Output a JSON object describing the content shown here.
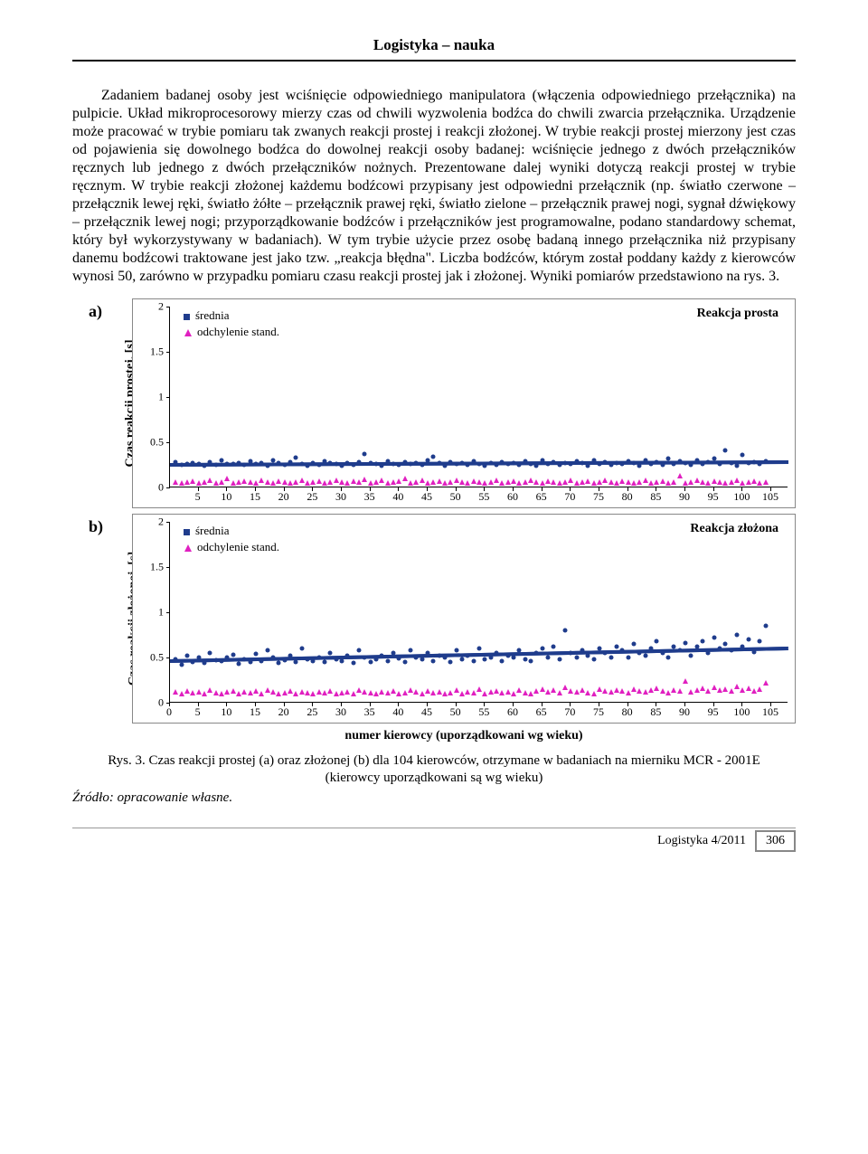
{
  "header": "Logistyka – nauka",
  "paragraph": "Zadaniem badanej osoby jest wciśnięcie odpowiedniego manipulatora (włączenia odpowiedniego przełącznika) na pulpicie. Układ mikroprocesorowy mierzy czas od chwili wyzwolenia bodźca do chwili zwarcia przełącznika. Urządzenie może pracować w trybie pomiaru tak zwanych reakcji prostej i reakcji złożonej. W trybie reakcji prostej mierzony jest czas od pojawienia się dowolnego bodźca do dowolnej reakcji osoby badanej: wciśnięcie jednego z dwóch przełączników ręcznych lub jednego z dwóch przełączników nożnych. Prezentowane dalej wyniki dotyczą reakcji prostej w trybie ręcznym. W trybie reakcji złożonej każdemu bodźcowi przypisany jest odpowiedni przełącznik (np. światło czerwone – przełącznik lewej ręki, światło żółte – przełącznik prawej ręki, światło zielone – przełącznik prawej nogi, sygnał dźwiękowy – przełącznik lewej nogi; przyporządkowanie bodźców i przełączników jest programowalne, podano standardowy schemat, który był wykorzystywany w badaniach). W tym trybie użycie przez osobę badaną innego przełącznika niż przypisany danemu bodźcowi traktowane jest jako tzw. „reakcja błędna\". Liczba bodźców, którym został poddany każdy z kierowców wynosi 50, zarówno w przypadku pomiaru czasu reakcji prostej jak i złożonej. Wyniki pomiarów przedstawiono na rys. 3.",
  "legend": {
    "mean": "średnia",
    "std": "odchylenie stand."
  },
  "chartA": {
    "panel_label": "a)",
    "ylabel": "Czas reakcji prostej, [s]",
    "title": "Reakcja prosta",
    "xmin": 0,
    "xmax": 108,
    "ymin": 0,
    "ymax": 2,
    "yticks": [
      0,
      0.5,
      1,
      1.5,
      2
    ],
    "xticks": [
      5,
      10,
      15,
      20,
      25,
      30,
      35,
      40,
      45,
      50,
      55,
      60,
      65,
      70,
      75,
      80,
      85,
      90,
      95,
      100,
      105
    ],
    "xticks_start0": false,
    "series_color": "#1f3c8c",
    "std_color": "#e020c0",
    "trend_y": 0.27,
    "trend_slope_end": 0.3,
    "mean": [
      0.28,
      0.25,
      0.26,
      0.27,
      0.26,
      0.24,
      0.28,
      0.25,
      0.3,
      0.26,
      0.26,
      0.27,
      0.25,
      0.29,
      0.26,
      0.27,
      0.24,
      0.3,
      0.27,
      0.25,
      0.28,
      0.33,
      0.26,
      0.24,
      0.27,
      0.25,
      0.29,
      0.27,
      0.26,
      0.24,
      0.27,
      0.25,
      0.28,
      0.37,
      0.27,
      0.26,
      0.24,
      0.29,
      0.26,
      0.25,
      0.28,
      0.26,
      0.27,
      0.25,
      0.3,
      0.34,
      0.27,
      0.24,
      0.28,
      0.26,
      0.27,
      0.25,
      0.29,
      0.26,
      0.24,
      0.27,
      0.25,
      0.28,
      0.26,
      0.27,
      0.25,
      0.29,
      0.26,
      0.24,
      0.3,
      0.26,
      0.28,
      0.25,
      0.27,
      0.26,
      0.29,
      0.27,
      0.24,
      0.3,
      0.26,
      0.28,
      0.25,
      0.27,
      0.26,
      0.29,
      0.27,
      0.24,
      0.3,
      0.26,
      0.28,
      0.25,
      0.32,
      0.26,
      0.29,
      0.27,
      0.25,
      0.3,
      0.26,
      0.28,
      0.32,
      0.26,
      0.41,
      0.27,
      0.24,
      0.36,
      0.27,
      0.28,
      0.26,
      0.29
    ],
    "std": [
      0.06,
      0.05,
      0.06,
      0.07,
      0.05,
      0.06,
      0.08,
      0.05,
      0.06,
      0.1,
      0.05,
      0.06,
      0.07,
      0.06,
      0.05,
      0.08,
      0.06,
      0.05,
      0.07,
      0.06,
      0.05,
      0.06,
      0.08,
      0.05,
      0.06,
      0.07,
      0.05,
      0.06,
      0.08,
      0.06,
      0.05,
      0.07,
      0.06,
      0.09,
      0.05,
      0.06,
      0.08,
      0.05,
      0.06,
      0.07,
      0.1,
      0.05,
      0.06,
      0.08,
      0.05,
      0.06,
      0.07,
      0.05,
      0.06,
      0.08,
      0.06,
      0.05,
      0.07,
      0.06,
      0.05,
      0.06,
      0.08,
      0.05,
      0.06,
      0.07,
      0.05,
      0.06,
      0.08,
      0.06,
      0.05,
      0.07,
      0.06,
      0.05,
      0.06,
      0.08,
      0.05,
      0.06,
      0.07,
      0.05,
      0.06,
      0.08,
      0.06,
      0.05,
      0.07,
      0.06,
      0.05,
      0.06,
      0.08,
      0.05,
      0.06,
      0.07,
      0.05,
      0.06,
      0.13,
      0.05,
      0.06,
      0.08,
      0.06,
      0.05,
      0.07,
      0.06,
      0.05,
      0.06,
      0.08,
      0.05,
      0.06,
      0.07,
      0.05,
      0.06
    ]
  },
  "chartB": {
    "panel_label": "b)",
    "ylabel": "Czas reakcji złożonej, [s]",
    "title": "Reakcja złożona",
    "xmin": 0,
    "xmax": 108,
    "ymin": 0,
    "ymax": 2,
    "yticks": [
      0,
      0.5,
      1,
      1.5,
      2
    ],
    "xticks": [
      0,
      5,
      10,
      15,
      20,
      25,
      30,
      35,
      40,
      45,
      50,
      55,
      60,
      65,
      70,
      75,
      80,
      85,
      90,
      95,
      100,
      105
    ],
    "xticks_start0": true,
    "series_color": "#1f3c8c",
    "std_color": "#e020c0",
    "trend_y": 0.48,
    "trend_slope_end": 0.62,
    "mean": [
      0.48,
      0.42,
      0.52,
      0.45,
      0.5,
      0.44,
      0.55,
      0.47,
      0.46,
      0.5,
      0.53,
      0.43,
      0.48,
      0.45,
      0.54,
      0.46,
      0.58,
      0.5,
      0.44,
      0.47,
      0.52,
      0.45,
      0.6,
      0.48,
      0.46,
      0.5,
      0.45,
      0.55,
      0.48,
      0.46,
      0.52,
      0.44,
      0.58,
      0.5,
      0.45,
      0.48,
      0.52,
      0.46,
      0.55,
      0.49,
      0.45,
      0.58,
      0.5,
      0.48,
      0.55,
      0.46,
      0.52,
      0.5,
      0.45,
      0.58,
      0.48,
      0.52,
      0.46,
      0.6,
      0.48,
      0.5,
      0.55,
      0.46,
      0.52,
      0.5,
      0.58,
      0.48,
      0.46,
      0.55,
      0.6,
      0.5,
      0.62,
      0.48,
      0.8,
      0.55,
      0.5,
      0.58,
      0.52,
      0.48,
      0.6,
      0.55,
      0.5,
      0.62,
      0.58,
      0.5,
      0.65,
      0.55,
      0.52,
      0.6,
      0.68,
      0.55,
      0.5,
      0.62,
      0.58,
      0.66,
      0.52,
      0.62,
      0.68,
      0.55,
      0.72,
      0.6,
      0.65,
      0.58,
      0.75,
      0.62,
      0.7,
      0.56,
      0.68,
      0.85
    ],
    "std": [
      0.12,
      0.1,
      0.13,
      0.11,
      0.12,
      0.1,
      0.14,
      0.11,
      0.1,
      0.12,
      0.13,
      0.1,
      0.12,
      0.11,
      0.13,
      0.1,
      0.14,
      0.12,
      0.1,
      0.11,
      0.13,
      0.1,
      0.12,
      0.11,
      0.1,
      0.12,
      0.11,
      0.13,
      0.1,
      0.11,
      0.12,
      0.1,
      0.14,
      0.12,
      0.11,
      0.1,
      0.12,
      0.11,
      0.13,
      0.1,
      0.11,
      0.14,
      0.12,
      0.1,
      0.13,
      0.11,
      0.12,
      0.1,
      0.11,
      0.14,
      0.1,
      0.12,
      0.11,
      0.15,
      0.1,
      0.12,
      0.13,
      0.11,
      0.12,
      0.1,
      0.14,
      0.11,
      0.1,
      0.13,
      0.15,
      0.12,
      0.14,
      0.11,
      0.17,
      0.13,
      0.12,
      0.14,
      0.11,
      0.1,
      0.15,
      0.13,
      0.12,
      0.14,
      0.13,
      0.11,
      0.15,
      0.13,
      0.12,
      0.14,
      0.16,
      0.13,
      0.11,
      0.14,
      0.13,
      0.24,
      0.12,
      0.14,
      0.16,
      0.13,
      0.17,
      0.14,
      0.15,
      0.13,
      0.18,
      0.14,
      0.16,
      0.13,
      0.15,
      0.22
    ]
  },
  "xaxis_label": "numer kierowcy (uporządkowani wg wieku)",
  "caption": "Rys. 3. Czas reakcji prostej (a) oraz złożonej (b) dla 104 kierowców, otrzymane w badaniach na mierniku MCR - 2001E (kierowcy uporządkowani są wg wieku)",
  "source": "Źródło: opracowanie własne.",
  "footer_text": "Logistyka 4/2011",
  "footer_page": "306"
}
